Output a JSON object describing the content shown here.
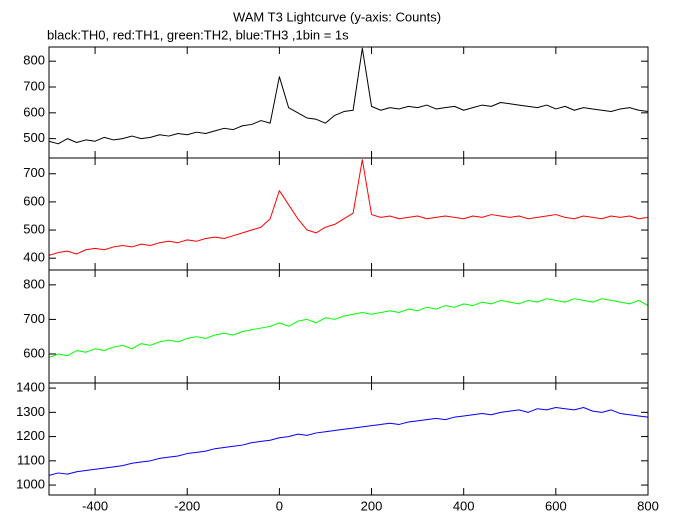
{
  "chart_data": [
    {
      "type": "line",
      "title": "WAM T3 Lightcurve (y-axis: Counts)",
      "subtitle": "black:TH0, red:TH1, green:TH2, blue:TH3 ,1bin = 1s",
      "x": [
        -500,
        -480,
        -460,
        -440,
        -420,
        -400,
        -380,
        -360,
        -340,
        -320,
        -300,
        -280,
        -260,
        -240,
        -220,
        -200,
        -180,
        -160,
        -140,
        -120,
        -100,
        -80,
        -60,
        -40,
        -20,
        0,
        20,
        40,
        60,
        80,
        100,
        120,
        140,
        160,
        180,
        200,
        220,
        240,
        260,
        280,
        300,
        320,
        340,
        360,
        380,
        400,
        420,
        440,
        460,
        480,
        500,
        520,
        540,
        560,
        580,
        600,
        620,
        640,
        660,
        680,
        700,
        720,
        740,
        760,
        780,
        800
      ],
      "values": [
        490,
        480,
        500,
        485,
        495,
        490,
        505,
        495,
        500,
        510,
        500,
        505,
        515,
        510,
        520,
        515,
        525,
        520,
        530,
        540,
        535,
        550,
        555,
        570,
        560,
        740,
        620,
        600,
        580,
        575,
        560,
        590,
        605,
        610,
        850,
        625,
        610,
        620,
        615,
        625,
        620,
        630,
        615,
        620,
        625,
        610,
        620,
        630,
        625,
        640,
        635,
        630,
        625,
        620,
        630,
        615,
        625,
        610,
        620,
        615,
        610,
        605,
        615,
        620,
        610,
        605
      ],
      "color": "#000000",
      "xlim": [
        -500,
        800
      ],
      "xticks": [
        -400,
        -200,
        0,
        200,
        400,
        600,
        800
      ],
      "ylim": [
        425,
        855
      ],
      "yticks": [
        500,
        600,
        700,
        800
      ]
    },
    {
      "type": "line",
      "x": [
        -500,
        -480,
        -460,
        -440,
        -420,
        -400,
        -380,
        -360,
        -340,
        -320,
        -300,
        -280,
        -260,
        -240,
        -220,
        -200,
        -180,
        -160,
        -140,
        -120,
        -100,
        -80,
        -60,
        -40,
        -20,
        0,
        20,
        40,
        60,
        80,
        100,
        120,
        140,
        160,
        180,
        200,
        220,
        240,
        260,
        280,
        300,
        320,
        340,
        360,
        380,
        400,
        420,
        440,
        460,
        480,
        500,
        520,
        540,
        560,
        580,
        600,
        620,
        640,
        660,
        680,
        700,
        720,
        740,
        760,
        780,
        800
      ],
      "values": [
        410,
        420,
        425,
        415,
        430,
        435,
        430,
        440,
        445,
        440,
        450,
        445,
        455,
        460,
        455,
        465,
        460,
        470,
        475,
        470,
        480,
        490,
        500,
        510,
        540,
        640,
        590,
        540,
        500,
        490,
        510,
        520,
        540,
        560,
        750,
        555,
        545,
        550,
        540,
        545,
        550,
        540,
        545,
        550,
        545,
        540,
        550,
        545,
        555,
        550,
        545,
        550,
        540,
        545,
        550,
        555,
        545,
        540,
        550,
        545,
        540,
        550,
        545,
        550,
        540,
        545
      ],
      "color": "#ff0000",
      "xlim": [
        -500,
        800
      ],
      "xticks": [
        -400,
        -200,
        0,
        200,
        400,
        600,
        800
      ],
      "ylim": [
        358,
        756
      ],
      "yticks": [
        400,
        500,
        600,
        700
      ]
    },
    {
      "type": "line",
      "x": [
        -500,
        -480,
        -460,
        -440,
        -420,
        -400,
        -380,
        -360,
        -340,
        -320,
        -300,
        -280,
        -260,
        -240,
        -220,
        -200,
        -180,
        -160,
        -140,
        -120,
        -100,
        -80,
        -60,
        -40,
        -20,
        0,
        20,
        40,
        60,
        80,
        100,
        120,
        140,
        160,
        180,
        200,
        220,
        240,
        260,
        280,
        300,
        320,
        340,
        360,
        380,
        400,
        420,
        440,
        460,
        480,
        500,
        520,
        540,
        560,
        580,
        600,
        620,
        640,
        660,
        680,
        700,
        720,
        740,
        760,
        780,
        800
      ],
      "values": [
        590,
        600,
        595,
        610,
        605,
        615,
        610,
        620,
        625,
        615,
        630,
        625,
        635,
        640,
        635,
        645,
        650,
        645,
        655,
        660,
        655,
        665,
        670,
        675,
        680,
        690,
        680,
        695,
        700,
        690,
        705,
        700,
        710,
        715,
        720,
        715,
        720,
        725,
        720,
        730,
        725,
        735,
        730,
        740,
        735,
        745,
        740,
        750,
        745,
        755,
        750,
        745,
        755,
        750,
        760,
        755,
        750,
        760,
        755,
        750,
        760,
        755,
        750,
        745,
        755,
        740
      ],
      "color": "#00ff00",
      "xlim": [
        -500,
        800
      ],
      "xticks": [
        -400,
        -200,
        0,
        200,
        400,
        600,
        800
      ],
      "ylim": [
        516,
        843
      ],
      "yticks": [
        600,
        700,
        800
      ]
    },
    {
      "type": "line",
      "x": [
        -500,
        -480,
        -460,
        -440,
        -420,
        -400,
        -380,
        -360,
        -340,
        -320,
        -300,
        -280,
        -260,
        -240,
        -220,
        -200,
        -180,
        -160,
        -140,
        -120,
        -100,
        -80,
        -60,
        -40,
        -20,
        0,
        20,
        40,
        60,
        80,
        100,
        120,
        140,
        160,
        180,
        200,
        220,
        240,
        260,
        280,
        300,
        320,
        340,
        360,
        380,
        400,
        420,
        440,
        460,
        480,
        500,
        520,
        540,
        560,
        580,
        600,
        620,
        640,
        660,
        680,
        700,
        720,
        740,
        760,
        780,
        800
      ],
      "values": [
        1040,
        1050,
        1045,
        1055,
        1060,
        1065,
        1070,
        1075,
        1080,
        1090,
        1095,
        1100,
        1110,
        1115,
        1120,
        1130,
        1135,
        1140,
        1150,
        1155,
        1160,
        1165,
        1175,
        1180,
        1185,
        1195,
        1200,
        1210,
        1205,
        1215,
        1220,
        1225,
        1230,
        1235,
        1240,
        1245,
        1250,
        1255,
        1250,
        1260,
        1265,
        1270,
        1275,
        1270,
        1280,
        1285,
        1290,
        1295,
        1290,
        1300,
        1305,
        1310,
        1300,
        1315,
        1310,
        1320,
        1315,
        1310,
        1320,
        1305,
        1300,
        1310,
        1295,
        1290,
        1285,
        1280
      ],
      "color": "#0000ff",
      "xlim": [
        -500,
        800
      ],
      "xticks": [
        -400,
        -200,
        0,
        200,
        400,
        600,
        800
      ],
      "ylim": [
        959,
        1421
      ],
      "yticks": [
        1000,
        1100,
        1200,
        1300,
        1400
      ]
    }
  ]
}
